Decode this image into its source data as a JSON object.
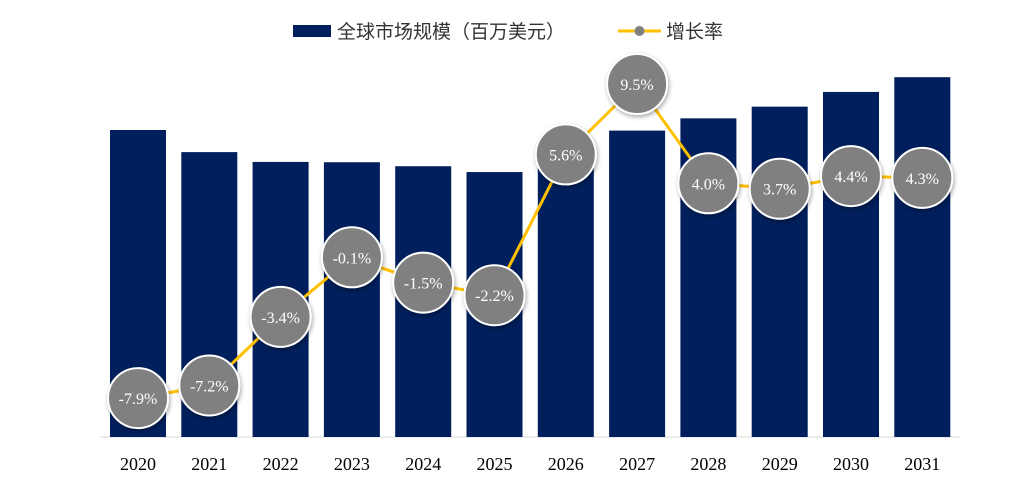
{
  "chart_data": {
    "type": "bar+line",
    "categories": [
      "2020",
      "2021",
      "2022",
      "2023",
      "2024",
      "2025",
      "2026",
      "2027",
      "2028",
      "2029",
      "2030",
      "2031"
    ],
    "series": [
      {
        "name": "全球市场规模（百万美元）",
        "type": "bar",
        "axis": "primary",
        "color": "#001F5C",
        "values": [
          100,
          92.8,
          89.6,
          89.5,
          88.2,
          86.3,
          91.1,
          99.8,
          103.8,
          107.6,
          112.4,
          117.2
        ]
      },
      {
        "name": "增长率",
        "type": "line",
        "axis": "secondary",
        "color": "#FFC000",
        "marker_color": "#808080",
        "values": [
          -7.9,
          -7.2,
          -3.4,
          -0.1,
          -1.5,
          -2.2,
          5.6,
          9.5,
          4.0,
          3.7,
          4.4,
          4.3
        ],
        "labels": [
          "-7.9%",
          "-7.2%",
          "-3.4%",
          "-0.1%",
          "-1.5%",
          "-2.2%",
          "5.6%",
          "9.5%",
          "4.0%",
          "3.7%",
          "4.4%",
          "4.3%"
        ]
      }
    ],
    "title": "",
    "xlabel": "",
    "ylabel": "",
    "legend": "top",
    "grid": false,
    "axes_visible": false
  }
}
